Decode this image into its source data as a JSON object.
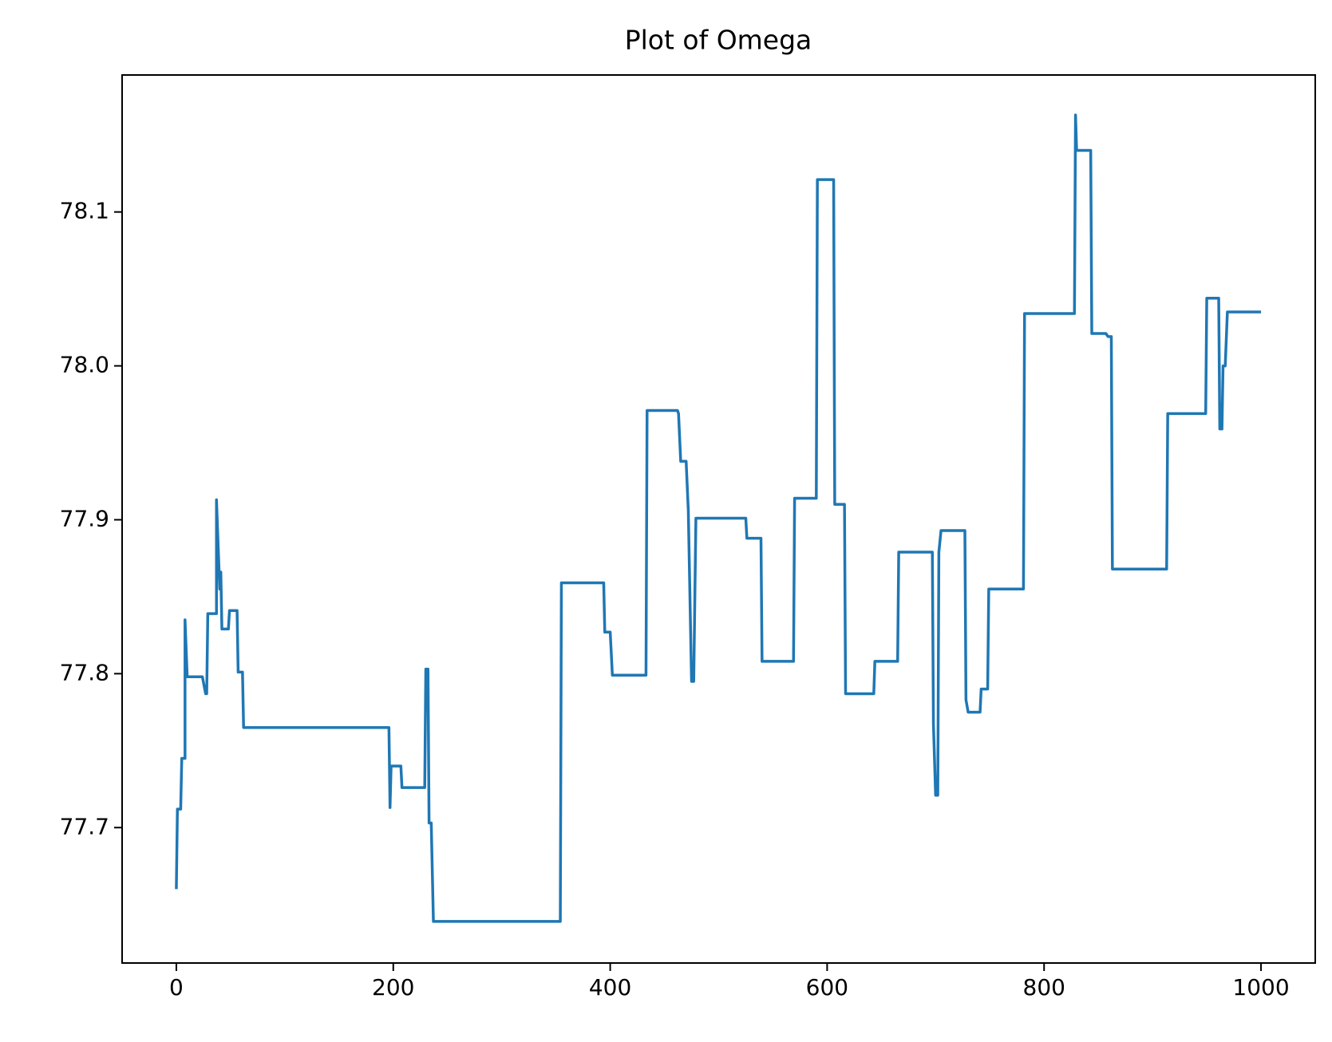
{
  "chart_data": {
    "type": "line",
    "title": "Plot of Omega",
    "x": [
      0,
      1,
      4,
      5,
      8,
      8,
      10,
      24,
      27,
      28,
      29,
      37,
      37,
      40,
      41,
      42,
      48,
      49,
      56,
      57,
      61,
      62,
      196,
      197,
      198,
      207,
      208,
      229,
      230,
      232,
      233,
      235,
      237,
      354,
      355,
      394,
      395,
      400,
      402,
      433,
      434,
      462,
      463,
      465,
      470,
      472,
      475,
      477,
      479,
      525,
      526,
      539,
      540,
      569,
      570,
      590,
      591,
      606,
      607,
      616,
      617,
      643,
      644,
      665,
      666,
      697,
      698,
      700,
      702,
      703,
      705,
      727,
      728,
      730,
      741,
      742,
      748,
      749,
      781,
      782,
      828,
      829,
      830,
      843,
      844,
      857,
      859,
      862,
      863,
      913,
      914,
      949,
      950,
      961,
      962,
      964,
      965,
      967,
      969,
      1000
    ],
    "values": [
      77.66,
      77.712,
      77.712,
      77.745,
      77.745,
      77.835,
      77.798,
      77.798,
      77.787,
      77.787,
      77.839,
      77.839,
      77.913,
      77.855,
      77.866,
      77.829,
      77.829,
      77.841,
      77.841,
      77.801,
      77.801,
      77.765,
      77.765,
      77.713,
      77.74,
      77.74,
      77.726,
      77.726,
      77.803,
      77.803,
      77.703,
      77.703,
      77.639,
      77.639,
      77.859,
      77.859,
      77.827,
      77.827,
      77.799,
      77.799,
      77.971,
      77.971,
      77.969,
      77.938,
      77.938,
      77.906,
      77.795,
      77.795,
      77.901,
      77.901,
      77.888,
      77.888,
      77.808,
      77.808,
      77.914,
      77.914,
      78.121,
      78.121,
      77.91,
      77.91,
      77.787,
      77.787,
      77.808,
      77.808,
      77.879,
      77.879,
      77.767,
      77.721,
      77.721,
      77.879,
      77.893,
      77.893,
      77.783,
      77.775,
      77.775,
      77.79,
      77.79,
      77.855,
      77.855,
      78.034,
      78.034,
      78.163,
      78.14,
      78.14,
      78.021,
      78.021,
      78.019,
      78.019,
      77.868,
      77.868,
      77.969,
      77.969,
      78.044,
      78.044,
      77.959,
      77.959,
      78.0,
      78.0,
      78.035,
      78.035
    ],
    "color": "#1f77b4",
    "xlim": [
      -50,
      1050
    ],
    "xticks": [
      0,
      200,
      400,
      600,
      800,
      1000
    ],
    "ylim": [
      77.612,
      78.189
    ],
    "yticks": [
      77.7,
      77.8,
      77.9,
      {
        "value": 78,
        "label": "78.0"
      },
      78.1
    ]
  }
}
